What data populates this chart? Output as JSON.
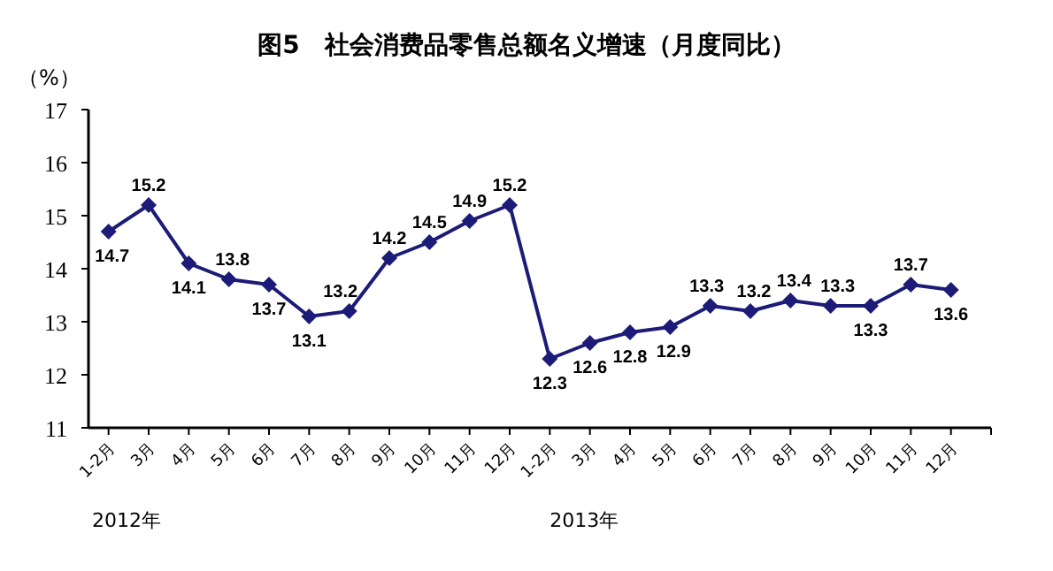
{
  "chart_data": {
    "type": "line",
    "title": "图5　社会消费品零售总额名义增速（月度同比）",
    "ylabel": "（%）",
    "categories": [
      "1-2月",
      "3月",
      "4月",
      "5月",
      "6月",
      "7月",
      "8月",
      "9月",
      "10月",
      "11月",
      "12月",
      "1-2月",
      "3月",
      "4月",
      "5月",
      "6月",
      "7月",
      "8月",
      "9月",
      "10月",
      "11月",
      "12月"
    ],
    "series": [
      {
        "color": "#1c1c78",
        "values": [
          14.7,
          15.2,
          14.1,
          13.8,
          13.7,
          13.1,
          13.2,
          14.2,
          14.5,
          14.9,
          15.2,
          12.3,
          12.6,
          12.8,
          12.9,
          13.3,
          13.2,
          13.4,
          13.3,
          13.3,
          13.7,
          13.6
        ]
      }
    ],
    "ylim": [
      11,
      17
    ],
    "yticks": [
      11,
      12,
      13,
      14,
      15,
      16,
      17
    ],
    "annotations": [
      "2012年",
      "2013年"
    ],
    "data_labels": true,
    "marker": "diamond",
    "line_style": "solid",
    "grid": false
  }
}
